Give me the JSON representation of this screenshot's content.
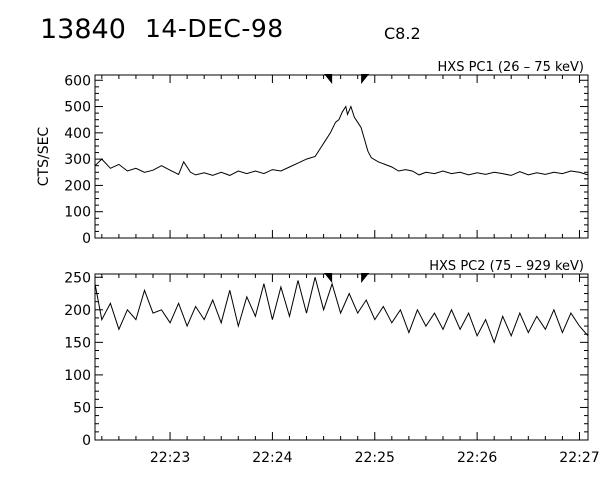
{
  "header": {
    "event_id": "13840",
    "date": "14-DEC-98",
    "flare_class": "C8.2"
  },
  "chart_data": [
    {
      "type": "line",
      "title": "HXS PC1 (26 – 75 keV)",
      "ylabel": "CTS/SEC",
      "xlabel": "",
      "x_unit": "UT time (hh:mm)",
      "xlim": [
        "22:22:16",
        "22:27:05"
      ],
      "ylim": [
        0,
        620
      ],
      "yticks": [
        0,
        100,
        200,
        300,
        400,
        500,
        600
      ],
      "xticks": [
        "22:23",
        "22:24",
        "22:25",
        "22:26",
        "22:27"
      ],
      "show_xtick_labels": false,
      "markers": [
        "22:24:35",
        "22:24:52"
      ],
      "series": [
        {
          "points": [
            [
              "22:22:16",
              275
            ],
            [
              "22:22:20",
              300
            ],
            [
              "22:22:25",
              265
            ],
            [
              "22:22:30",
              280
            ],
            [
              "22:22:35",
              255
            ],
            [
              "22:22:40",
              265
            ],
            [
              "22:22:45",
              250
            ],
            [
              "22:22:50",
              258
            ],
            [
              "22:22:55",
              275
            ],
            [
              "22:23:00",
              258
            ],
            [
              "22:23:05",
              242
            ],
            [
              "22:23:08",
              290
            ],
            [
              "22:23:12",
              250
            ],
            [
              "22:23:15",
              240
            ],
            [
              "22:23:20",
              248
            ],
            [
              "22:23:25",
              238
            ],
            [
              "22:23:30",
              250
            ],
            [
              "22:23:35",
              238
            ],
            [
              "22:23:40",
              255
            ],
            [
              "22:23:45",
              245
            ],
            [
              "22:23:50",
              255
            ],
            [
              "22:23:55",
              245
            ],
            [
              "22:24:00",
              260
            ],
            [
              "22:24:05",
              255
            ],
            [
              "22:24:10",
              270
            ],
            [
              "22:24:15",
              285
            ],
            [
              "22:24:20",
              300
            ],
            [
              "22:24:25",
              310
            ],
            [
              "22:24:28",
              340
            ],
            [
              "22:24:31",
              370
            ],
            [
              "22:24:34",
              400
            ],
            [
              "22:24:37",
              440
            ],
            [
              "22:24:39",
              450
            ],
            [
              "22:24:41",
              480
            ],
            [
              "22:24:43",
              500
            ],
            [
              "22:24:44",
              470
            ],
            [
              "22:24:46",
              500
            ],
            [
              "22:24:48",
              460
            ],
            [
              "22:24:50",
              440
            ],
            [
              "22:24:52",
              420
            ],
            [
              "22:24:54",
              375
            ],
            [
              "22:24:56",
              330
            ],
            [
              "22:24:58",
              305
            ],
            [
              "22:25:02",
              290
            ],
            [
              "22:25:06",
              280
            ],
            [
              "22:25:10",
              270
            ],
            [
              "22:25:14",
              255
            ],
            [
              "22:25:18",
              260
            ],
            [
              "22:25:22",
              255
            ],
            [
              "22:25:26",
              240
            ],
            [
              "22:25:30",
              250
            ],
            [
              "22:25:35",
              245
            ],
            [
              "22:25:40",
              255
            ],
            [
              "22:25:45",
              245
            ],
            [
              "22:25:50",
              250
            ],
            [
              "22:25:55",
              240
            ],
            [
              "22:26:00",
              248
            ],
            [
              "22:26:05",
              242
            ],
            [
              "22:26:10",
              250
            ],
            [
              "22:26:15",
              245
            ],
            [
              "22:26:20",
              238
            ],
            [
              "22:26:25",
              252
            ],
            [
              "22:26:30",
              240
            ],
            [
              "22:26:35",
              248
            ],
            [
              "22:26:40",
              242
            ],
            [
              "22:26:45",
              250
            ],
            [
              "22:26:50",
              245
            ],
            [
              "22:26:55",
              255
            ],
            [
              "22:27:00",
              250
            ],
            [
              "22:27:05",
              240
            ]
          ]
        }
      ]
    },
    {
      "type": "line",
      "title": "HXS PC2 (75 – 929 keV)",
      "ylabel": "",
      "xlabel": "",
      "x_unit": "UT time (hh:mm)",
      "xlim": [
        "22:22:16",
        "22:27:05"
      ],
      "ylim": [
        0,
        255
      ],
      "yticks": [
        0,
        50,
        100,
        150,
        200,
        250
      ],
      "xticks": [
        "22:23",
        "22:24",
        "22:25",
        "22:26",
        "22:27"
      ],
      "show_xtick_labels": true,
      "markers": [
        "22:24:35",
        "22:24:52"
      ],
      "series": [
        {
          "points": [
            [
              "22:22:16",
              240
            ],
            [
              "22:22:20",
              185
            ],
            [
              "22:22:25",
              210
            ],
            [
              "22:22:30",
              170
            ],
            [
              "22:22:35",
              200
            ],
            [
              "22:22:40",
              185
            ],
            [
              "22:22:45",
              230
            ],
            [
              "22:22:50",
              195
            ],
            [
              "22:22:55",
              200
            ],
            [
              "22:23:00",
              180
            ],
            [
              "22:23:05",
              210
            ],
            [
              "22:23:10",
              175
            ],
            [
              "22:23:15",
              205
            ],
            [
              "22:23:20",
              185
            ],
            [
              "22:23:25",
              215
            ],
            [
              "22:23:30",
              180
            ],
            [
              "22:23:35",
              230
            ],
            [
              "22:23:40",
              175
            ],
            [
              "22:23:45",
              220
            ],
            [
              "22:23:50",
              190
            ],
            [
              "22:23:55",
              240
            ],
            [
              "22:24:00",
              185
            ],
            [
              "22:24:05",
              235
            ],
            [
              "22:24:10",
              190
            ],
            [
              "22:24:15",
              245
            ],
            [
              "22:24:20",
              195
            ],
            [
              "22:24:25",
              250
            ],
            [
              "22:24:30",
              200
            ],
            [
              "22:24:35",
              240
            ],
            [
              "22:24:40",
              195
            ],
            [
              "22:24:45",
              225
            ],
            [
              "22:24:50",
              195
            ],
            [
              "22:24:55",
              215
            ],
            [
              "22:25:00",
              185
            ],
            [
              "22:25:05",
              205
            ],
            [
              "22:25:10",
              180
            ],
            [
              "22:25:15",
              200
            ],
            [
              "22:25:20",
              165
            ],
            [
              "22:25:25",
              200
            ],
            [
              "22:25:30",
              175
            ],
            [
              "22:25:35",
              195
            ],
            [
              "22:25:40",
              170
            ],
            [
              "22:25:45",
              200
            ],
            [
              "22:25:50",
              170
            ],
            [
              "22:25:55",
              195
            ],
            [
              "22:26:00",
              160
            ],
            [
              "22:26:05",
              185
            ],
            [
              "22:26:10",
              150
            ],
            [
              "22:26:15",
              190
            ],
            [
              "22:26:20",
              160
            ],
            [
              "22:26:25",
              195
            ],
            [
              "22:26:30",
              165
            ],
            [
              "22:26:35",
              190
            ],
            [
              "22:26:40",
              170
            ],
            [
              "22:26:45",
              200
            ],
            [
              "22:26:50",
              165
            ],
            [
              "22:26:55",
              195
            ],
            [
              "22:27:00",
              175
            ],
            [
              "22:27:05",
              160
            ]
          ]
        }
      ]
    }
  ]
}
